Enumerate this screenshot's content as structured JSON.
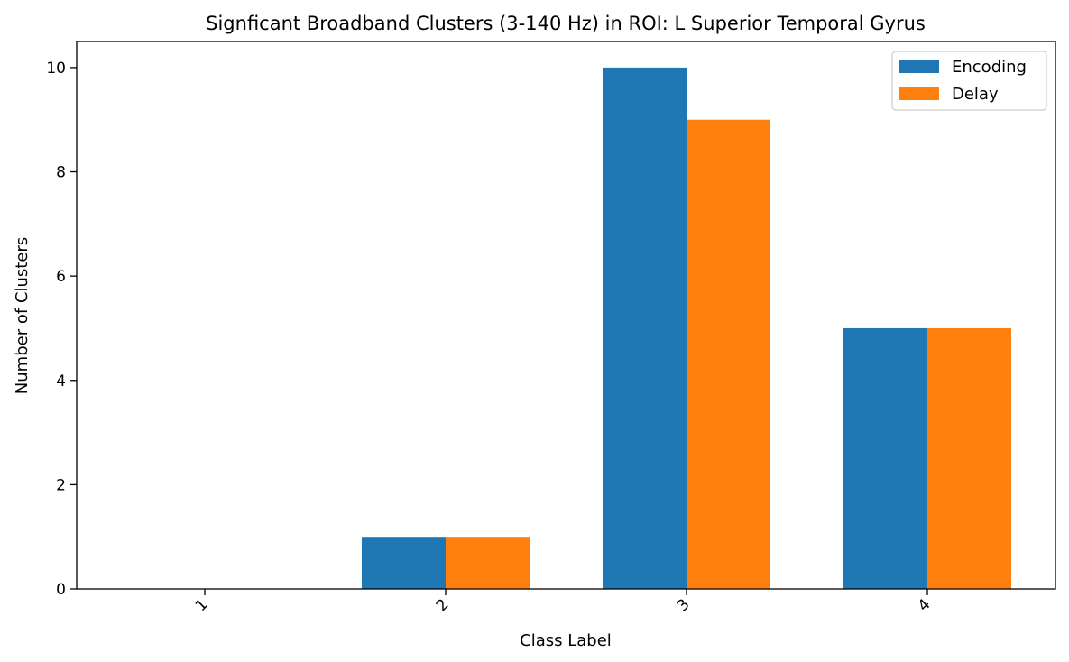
{
  "chart_data": {
    "type": "bar",
    "title": "Signficant Broadband Clusters (3-140 Hz) in ROI: L Superior Temporal Gyrus",
    "xlabel": "Class Label",
    "ylabel": "Number of Clusters",
    "categories": [
      "1",
      "2",
      "3",
      "4"
    ],
    "series": [
      {
        "name": "Encoding",
        "color": "#1f77b4",
        "values": [
          0,
          1,
          10,
          5
        ]
      },
      {
        "name": "Delay",
        "color": "#ff7f0e",
        "values": [
          0,
          1,
          9,
          5
        ]
      }
    ],
    "ylim": [
      0,
      10.5
    ],
    "yticks": [
      "0",
      "2",
      "4",
      "6",
      "8",
      "10"
    ],
    "xtick_rotation": "45deg",
    "grid": false,
    "legend_position": "top-right"
  }
}
